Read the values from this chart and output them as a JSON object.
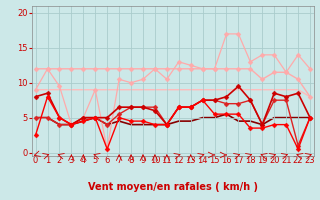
{
  "xlabel": "Vent moyen/en rafales ( km/h )",
  "background_color": "#cce8e8",
  "grid_color": "#aacccc",
  "x_values": [
    0,
    1,
    2,
    3,
    4,
    5,
    6,
    7,
    8,
    9,
    10,
    11,
    12,
    13,
    14,
    15,
    16,
    17,
    18,
    19,
    20,
    21,
    22,
    23
  ],
  "ylim": [
    -0.5,
    21
  ],
  "xlim": [
    -0.3,
    23.3
  ],
  "lines": [
    {
      "y": [
        12.0,
        12.0,
        12.0,
        12.0,
        12.0,
        12.0,
        12.0,
        12.0,
        12.0,
        12.0,
        12.0,
        12.0,
        12.0,
        12.0,
        12.0,
        12.0,
        12.0,
        12.0,
        12.0,
        10.5,
        11.5,
        11.5,
        10.5,
        8.0
      ],
      "color": "#ffaaaa",
      "linewidth": 1.0,
      "marker": "D",
      "markersize": 2.5,
      "zorder": 2,
      "linestyle": "-"
    },
    {
      "y": [
        9.0,
        9.0,
        9.0,
        9.0,
        9.0,
        9.0,
        9.0,
        9.0,
        9.0,
        9.0,
        9.0,
        9.0,
        9.0,
        9.0,
        9.0,
        9.0,
        9.0,
        9.0,
        9.0,
        9.0,
        9.0,
        9.0,
        9.0,
        8.0
      ],
      "color": "#ffbbbb",
      "linewidth": 1.0,
      "marker": null,
      "markersize": 0,
      "zorder": 1,
      "linestyle": "-"
    },
    {
      "y": [
        9.0,
        12.0,
        9.5,
        4.0,
        5.0,
        9.0,
        0.5,
        10.5,
        10.0,
        10.5,
        12.0,
        10.5,
        13.0,
        12.5,
        12.0,
        12.0,
        17.0,
        17.0,
        13.0,
        14.0,
        14.0,
        11.5,
        14.0,
        12.0
      ],
      "color": "#ffaaaa",
      "linewidth": 0.9,
      "marker": "D",
      "markersize": 2.5,
      "zorder": 3,
      "linestyle": "-"
    },
    {
      "y": [
        8.0,
        8.5,
        5.0,
        4.0,
        5.0,
        5.0,
        5.0,
        6.5,
        6.5,
        6.5,
        6.0,
        4.0,
        6.5,
        6.5,
        7.5,
        7.5,
        8.0,
        9.5,
        7.5,
        4.0,
        8.5,
        8.0,
        8.5,
        5.0
      ],
      "color": "#cc0000",
      "linewidth": 1.2,
      "marker": "D",
      "markersize": 2.5,
      "zorder": 5,
      "linestyle": "-"
    },
    {
      "y": [
        5.0,
        5.0,
        4.0,
        4.0,
        5.0,
        5.0,
        4.0,
        5.5,
        6.5,
        6.5,
        6.5,
        4.0,
        6.5,
        6.5,
        7.5,
        7.5,
        7.0,
        7.0,
        7.5,
        4.0,
        7.5,
        7.5,
        1.0,
        5.0
      ],
      "color": "#dd2222",
      "linewidth": 1.0,
      "marker": "D",
      "markersize": 2.5,
      "zorder": 4,
      "linestyle": "-"
    },
    {
      "y": [
        2.5,
        8.0,
        5.0,
        4.0,
        4.5,
        5.0,
        0.5,
        5.0,
        4.5,
        4.5,
        4.0,
        4.0,
        6.5,
        6.5,
        7.5,
        5.5,
        5.5,
        5.5,
        3.5,
        3.5,
        4.0,
        4.0,
        0.5,
        5.0
      ],
      "color": "#ff0000",
      "linewidth": 1.0,
      "marker": "D",
      "markersize": 2.5,
      "zorder": 6,
      "linestyle": "-"
    },
    {
      "y": [
        5.0,
        5.0,
        4.0,
        4.0,
        4.5,
        5.0,
        4.0,
        4.5,
        4.0,
        4.0,
        4.0,
        4.0,
        4.5,
        4.5,
        5.0,
        5.0,
        5.5,
        4.5,
        4.5,
        4.0,
        5.0,
        5.0,
        5.0,
        5.0
      ],
      "color": "#880000",
      "linewidth": 1.2,
      "marker": null,
      "markersize": 0,
      "zorder": 1,
      "linestyle": "-"
    }
  ],
  "wind_dirs": [
    225,
    45,
    315,
    0,
    0,
    315,
    999,
    0,
    0,
    0,
    0,
    0,
    45,
    0,
    45,
    90,
    90,
    45,
    45,
    315,
    45,
    45,
    315,
    45
  ],
  "yticks": [
    0,
    5,
    10,
    15,
    20
  ],
  "tick_fontsize": 6,
  "label_fontsize": 7
}
